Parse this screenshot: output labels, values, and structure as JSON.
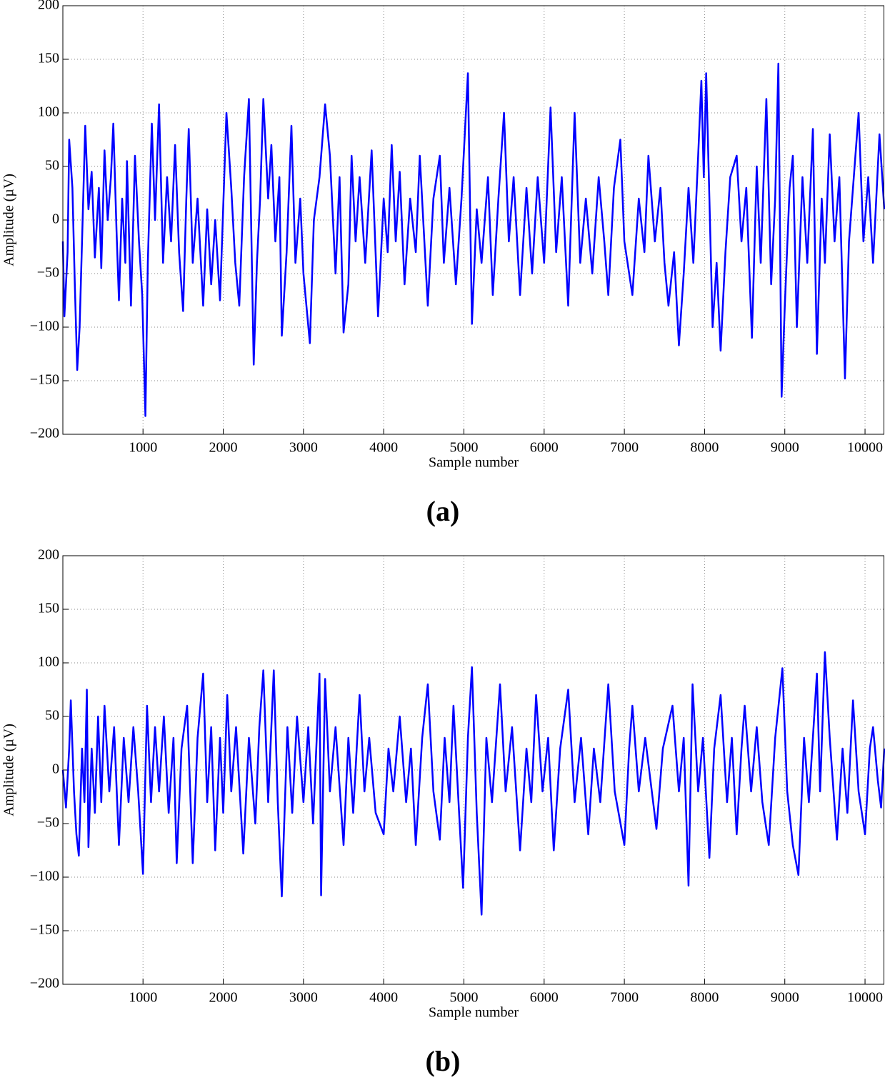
{
  "chart_data": [
    {
      "type": "line",
      "panel_label": "(a)",
      "xlabel": "Sample number",
      "ylabel": "Amplitude (µV)",
      "color": "#0000ff",
      "grid": true,
      "xlim": [
        1,
        10240
      ],
      "ylim": [
        -200,
        200
      ],
      "xticks": [
        1000,
        2000,
        3000,
        4000,
        5000,
        6000,
        7000,
        8000,
        9000,
        10000
      ],
      "yticks": [
        {
          "value": -200,
          "label": "−200"
        },
        {
          "value": -150,
          "label": "−150"
        },
        {
          "value": -100,
          "label": "−100"
        },
        {
          "value": -50,
          "label": "−50"
        },
        0,
        50,
        100,
        150,
        200
      ],
      "x": [
        1,
        20,
        60,
        80,
        120,
        150,
        180,
        210,
        240,
        280,
        320,
        360,
        400,
        450,
        480,
        520,
        560,
        600,
        630,
        670,
        700,
        740,
        780,
        800,
        850,
        900,
        950,
        990,
        1030,
        1060,
        1110,
        1150,
        1200,
        1250,
        1300,
        1350,
        1400,
        1450,
        1500,
        1540,
        1570,
        1620,
        1680,
        1750,
        1800,
        1850,
        1900,
        1960,
        2040,
        2100,
        2150,
        2200,
        2260,
        2320,
        2380,
        2420,
        2460,
        2500,
        2560,
        2600,
        2650,
        2700,
        2730,
        2790,
        2850,
        2900,
        2960,
        3000,
        3080,
        3130,
        3200,
        3270,
        3330,
        3400,
        3450,
        3500,
        3560,
        3600,
        3650,
        3700,
        3770,
        3850,
        3930,
        4000,
        4050,
        4100,
        4150,
        4200,
        4260,
        4330,
        4400,
        4450,
        4550,
        4620,
        4700,
        4750,
        4820,
        4900,
        4970,
        5050,
        5100,
        5160,
        5220,
        5300,
        5360,
        5430,
        5500,
        5560,
        5620,
        5700,
        5780,
        5850,
        5920,
        6000,
        6080,
        6150,
        6220,
        6300,
        6380,
        6450,
        6520,
        6600,
        6680,
        6750,
        6800,
        6870,
        6950,
        7000,
        7100,
        7180,
        7250,
        7300,
        7380,
        7450,
        7500,
        7550,
        7620,
        7680,
        7740,
        7800,
        7860,
        7920,
        7960,
        7990,
        8020,
        8060,
        8100,
        8150,
        8200,
        8260,
        8320,
        8400,
        8460,
        8520,
        8590,
        8650,
        8700,
        8770,
        8830,
        8880,
        8920,
        8960,
        9000,
        9060,
        9100,
        9150,
        9220,
        9280,
        9350,
        9400,
        9460,
        9500,
        9560,
        9620,
        9680,
        9750,
        9800,
        9860,
        9920,
        9980,
        10040,
        10100,
        10180,
        10240
      ],
      "values": [
        -20,
        -90,
        -30,
        75,
        30,
        -60,
        -140,
        -100,
        -20,
        88,
        10,
        45,
        -35,
        30,
        -45,
        65,
        0,
        40,
        90,
        -10,
        -75,
        20,
        -40,
        55,
        -80,
        60,
        -20,
        -70,
        -183,
        -40,
        90,
        0,
        108,
        -40,
        40,
        -20,
        70,
        -30,
        -85,
        20,
        85,
        -40,
        20,
        -80,
        10,
        -60,
        0,
        -75,
        100,
        30,
        -40,
        -80,
        40,
        113,
        -135,
        -40,
        20,
        113,
        20,
        70,
        -20,
        40,
        -108,
        -30,
        88,
        -40,
        20,
        -50,
        -115,
        0,
        40,
        108,
        60,
        -50,
        40,
        -105,
        -60,
        60,
        -20,
        40,
        -40,
        65,
        -90,
        20,
        -30,
        70,
        -20,
        45,
        -60,
        20,
        -30,
        60,
        -80,
        20,
        60,
        -40,
        30,
        -60,
        20,
        137,
        -97,
        10,
        -40,
        40,
        -70,
        20,
        100,
        -20,
        40,
        -70,
        30,
        -50,
        40,
        -40,
        105,
        -30,
        40,
        -80,
        100,
        -40,
        20,
        -50,
        40,
        -20,
        -70,
        30,
        75,
        -20,
        -70,
        20,
        -30,
        60,
        -20,
        30,
        -40,
        -80,
        -30,
        -117,
        -50,
        30,
        -40,
        60,
        130,
        40,
        137,
        20,
        -100,
        -40,
        -122,
        -30,
        40,
        60,
        -20,
        30,
        -110,
        50,
        -40,
        113,
        -60,
        20,
        146,
        -165,
        -80,
        30,
        60,
        -100,
        40,
        -40,
        85,
        -125,
        20,
        -40,
        80,
        -20,
        40,
        -148,
        -20,
        40,
        100,
        -20,
        40,
        -40,
        80,
        10
      ]
    },
    {
      "type": "line",
      "panel_label": "(b)",
      "xlabel": "Sample number",
      "ylabel": "Amplitude (µV)",
      "color": "#0000ff",
      "grid": true,
      "xlim": [
        1,
        10240
      ],
      "ylim": [
        -200,
        200
      ],
      "xticks": [
        1000,
        2000,
        3000,
        4000,
        5000,
        6000,
        7000,
        8000,
        9000,
        10000
      ],
      "yticks": [
        {
          "value": -200,
          "label": "−200"
        },
        {
          "value": -150,
          "label": "−150"
        },
        {
          "value": -100,
          "label": "−100"
        },
        {
          "value": -50,
          "label": "−50"
        },
        0,
        50,
        100,
        150,
        200
      ],
      "x": [
        1,
        40,
        80,
        100,
        140,
        170,
        200,
        240,
        270,
        300,
        320,
        360,
        400,
        440,
        480,
        520,
        580,
        640,
        700,
        760,
        820,
        880,
        940,
        1000,
        1050,
        1100,
        1150,
        1200,
        1260,
        1320,
        1380,
        1420,
        1480,
        1550,
        1620,
        1680,
        1750,
        1800,
        1850,
        1900,
        1960,
        2000,
        2050,
        2100,
        2160,
        2250,
        2320,
        2400,
        2450,
        2500,
        2560,
        2630,
        2680,
        2730,
        2800,
        2860,
        2920,
        3000,
        3060,
        3120,
        3200,
        3220,
        3270,
        3330,
        3400,
        3500,
        3560,
        3620,
        3700,
        3760,
        3820,
        3900,
        4000,
        4060,
        4120,
        4200,
        4280,
        4340,
        4400,
        4480,
        4550,
        4620,
        4700,
        4760,
        4820,
        4870,
        4940,
        4990,
        5050,
        5100,
        5160,
        5220,
        5280,
        5350,
        5450,
        5520,
        5600,
        5700,
        5780,
        5840,
        5900,
        5980,
        6050,
        6120,
        6200,
        6300,
        6380,
        6460,
        6550,
        6620,
        6700,
        6800,
        6880,
        7000,
        7060,
        7100,
        7180,
        7260,
        7400,
        7480,
        7600,
        7680,
        7740,
        7800,
        7850,
        7920,
        7980,
        8060,
        8120,
        8200,
        8280,
        8340,
        8400,
        8460,
        8500,
        8580,
        8650,
        8720,
        8800,
        8880,
        8970,
        9030,
        9100,
        9170,
        9240,
        9300,
        9400,
        9440,
        9500,
        9560,
        9650,
        9720,
        9780,
        9850,
        9920,
        10000,
        10060,
        10100,
        10160,
        10200,
        10240
      ],
      "values": [
        0,
        -35,
        20,
        65,
        -20,
        -60,
        -80,
        20,
        -30,
        75,
        -72,
        20,
        -40,
        50,
        -30,
        60,
        -20,
        40,
        -70,
        30,
        -30,
        40,
        -20,
        -97,
        60,
        -30,
        40,
        -20,
        50,
        -40,
        30,
        -87,
        20,
        60,
        -87,
        30,
        90,
        -30,
        40,
        -75,
        30,
        -40,
        70,
        -20,
        40,
        -78,
        30,
        -50,
        40,
        93,
        -30,
        93,
        -30,
        -118,
        40,
        -40,
        50,
        -30,
        40,
        -50,
        90,
        -117,
        85,
        -20,
        40,
        -70,
        30,
        -40,
        70,
        -20,
        30,
        -40,
        -60,
        20,
        -20,
        50,
        -30,
        20,
        -70,
        30,
        80,
        -20,
        -65,
        30,
        -30,
        60,
        -40,
        -110,
        30,
        96,
        -40,
        -135,
        30,
        -30,
        80,
        -20,
        40,
        -75,
        20,
        -30,
        70,
        -20,
        30,
        -75,
        20,
        75,
        -30,
        30,
        -60,
        20,
        -30,
        80,
        -20,
        -70,
        20,
        60,
        -20,
        30,
        -55,
        20,
        60,
        -20,
        30,
        -108,
        80,
        -20,
        30,
        -82,
        20,
        70,
        -30,
        30,
        -60,
        20,
        60,
        -20,
        40,
        -30,
        -70,
        30,
        95,
        -20,
        -70,
        -98,
        30,
        -30,
        90,
        -20,
        110,
        30,
        -65,
        20,
        -40,
        65,
        -20,
        -60,
        20,
        40,
        -10,
        -35,
        20
      ]
    }
  ]
}
